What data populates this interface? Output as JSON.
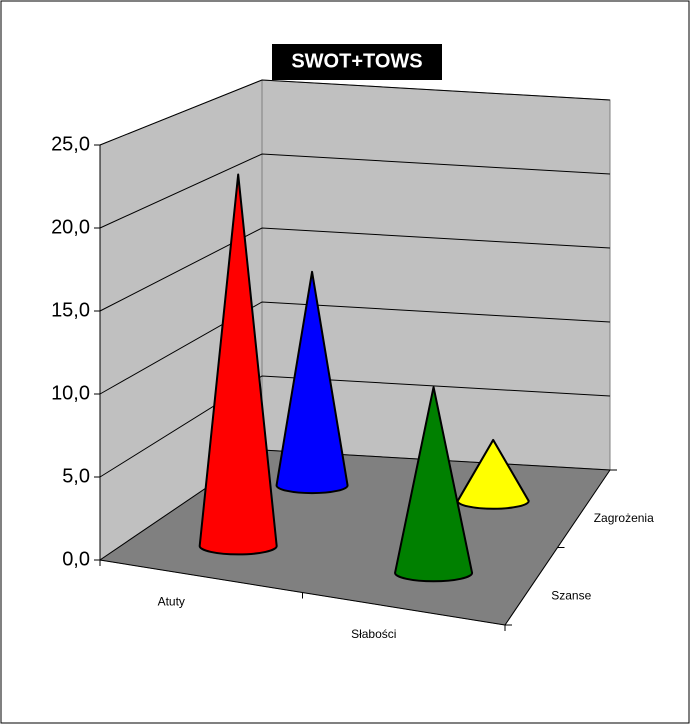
{
  "chart_data": {
    "type": "cone3d",
    "title": "SWOT+TOWS",
    "categories": [
      "Atuty",
      "Słabości"
    ],
    "series": [
      {
        "name": "Szanse",
        "colors": [
          "#ff0000",
          "#008000"
        ],
        "values": [
          23,
          11.5
        ]
      },
      {
        "name": "Zagrożenia",
        "colors": [
          "#0000ff",
          "#ffff00"
        ],
        "values": [
          14,
          4
        ]
      }
    ],
    "ylim": [
      0,
      25
    ],
    "yticks": [
      {
        "value": 0,
        "label": "0,0"
      },
      {
        "value": 5,
        "label": "5,0"
      },
      {
        "value": 10,
        "label": "10,0"
      },
      {
        "value": 15,
        "label": "15,0"
      },
      {
        "value": 20,
        "label": "20,0"
      },
      {
        "value": 25,
        "label": "25,0"
      }
    ],
    "grid": true
  }
}
